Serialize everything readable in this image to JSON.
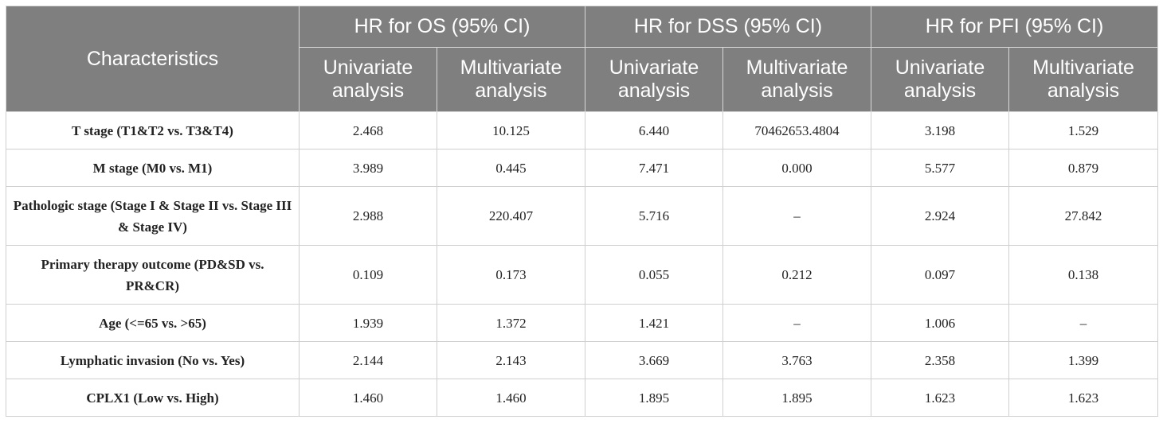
{
  "table": {
    "characteristics_header": "Characteristics",
    "groups": [
      "HR for OS (95% CI)",
      "HR for DSS (95% CI)",
      "HR for PFI (95% CI)"
    ],
    "subheaders": [
      "Univariate analysis",
      "Multivariate analysis",
      "Univariate analysis",
      "Multivariate analysis",
      "Univariate analysis",
      "Multivariate analysis"
    ],
    "rows": [
      {
        "label": "T stage (T1&T2 vs. T3&T4)",
        "values": [
          "2.468",
          "10.125",
          "6.440",
          "70462653.4804",
          "3.198",
          "1.529"
        ]
      },
      {
        "label": "M stage (M0 vs. M1)",
        "values": [
          "3.989",
          "0.445",
          "7.471",
          "0.000",
          "5.577",
          "0.879"
        ]
      },
      {
        "label": "Pathologic stage (Stage I & Stage II vs. Stage III & Stage IV)",
        "values": [
          "2.988",
          "220.407",
          "5.716",
          "–",
          "2.924",
          "27.842"
        ]
      },
      {
        "label": "Primary therapy outcome (PD&SD vs. PR&CR)",
        "values": [
          "0.109",
          "0.173",
          "0.055",
          "0.212",
          "0.097",
          "0.138"
        ]
      },
      {
        "label": "Age (<=65 vs. >65)",
        "values": [
          "1.939",
          "1.372",
          "1.421",
          "–",
          "1.006",
          "–"
        ]
      },
      {
        "label": "Lymphatic invasion (No vs. Yes)",
        "values": [
          "2.144",
          "2.143",
          "3.669",
          "3.763",
          "2.358",
          "1.399"
        ]
      },
      {
        "label": "CPLX1 (Low vs. High)",
        "values": [
          "1.460",
          "1.460",
          "1.895",
          "1.895",
          "1.623",
          "1.623"
        ]
      }
    ]
  }
}
